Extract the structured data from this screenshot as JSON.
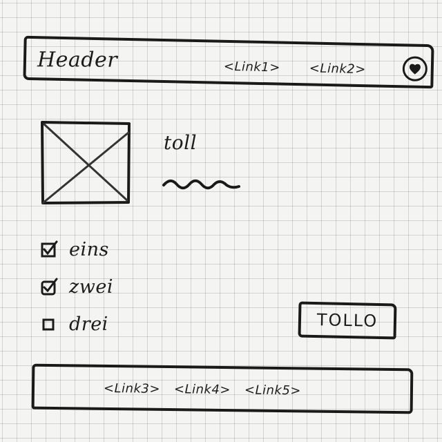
{
  "header": {
    "title": "Header",
    "links": [
      "<Link1>",
      "<Link2>"
    ],
    "favorite_icon": "heart-icon"
  },
  "content": {
    "image_icon": "image-placeholder-icon",
    "headline": "toll"
  },
  "options": [
    {
      "label": "eins",
      "checked": true
    },
    {
      "label": "zwei",
      "checked": true
    },
    {
      "label": "drei",
      "checked": false
    }
  ],
  "button": {
    "label": "TOLLO"
  },
  "footer": {
    "links": [
      "<Link3>",
      "<Link4>",
      "<Link5>"
    ]
  },
  "colors": {
    "ink": "#1a1a1a",
    "paper": "#f4f4f2",
    "grid": "#c8c8c8"
  }
}
